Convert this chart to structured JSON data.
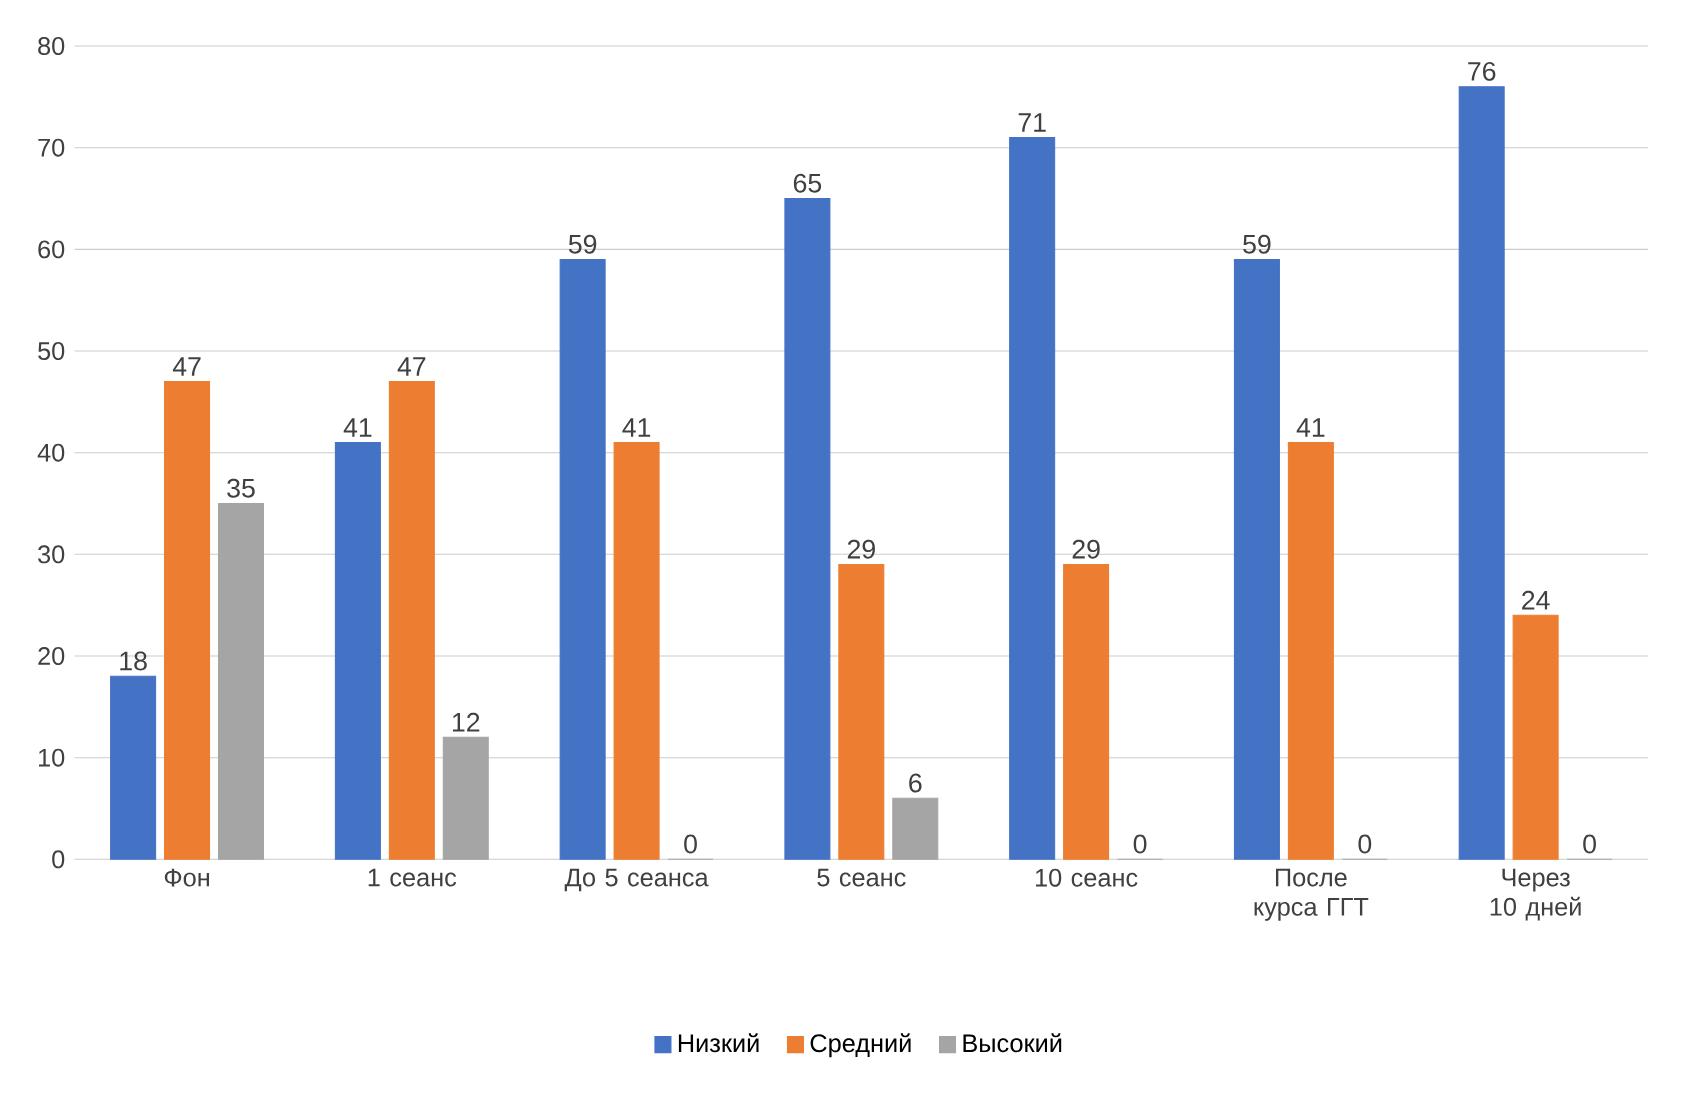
{
  "chart_data": {
    "type": "bar",
    "categories": [
      "Фон",
      "1 сеанс",
      "До 5 сеанса",
      "5 сеанс",
      "10 сеанс",
      "После курса ГГТ",
      "Через 10 дней"
    ],
    "series": [
      {
        "name": "Низкий",
        "color": "#4472c4",
        "values": [
          18,
          41,
          59,
          65,
          71,
          59,
          76
        ]
      },
      {
        "name": "Средний",
        "color": "#ed7d31",
        "values": [
          47,
          47,
          41,
          29,
          29,
          41,
          24
        ]
      },
      {
        "name": "Высокий",
        "color": "#a5a5a5",
        "values": [
          35,
          12,
          0,
          6,
          0,
          0,
          0
        ]
      }
    ],
    "ylim": [
      0,
      80
    ],
    "yticks": [
      0,
      10,
      20,
      30,
      40,
      50,
      60,
      70,
      80
    ],
    "grid": "y",
    "legend": "bottom",
    "data_labels": true
  }
}
